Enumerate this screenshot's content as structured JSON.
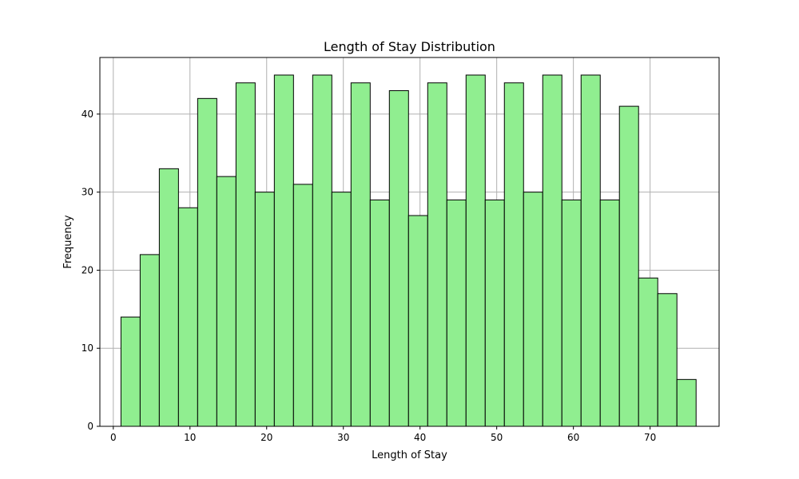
{
  "chart_data": {
    "type": "bar",
    "title": "Length of Stay Distribution",
    "xlabel": "Length of Stay",
    "ylabel": "Frequency",
    "xlim": [
      -1.75,
      79.0
    ],
    "ylim": [
      0,
      47.25
    ],
    "xticks": [
      0,
      10,
      20,
      30,
      40,
      50,
      60,
      70
    ],
    "yticks": [
      0,
      10,
      20,
      30,
      40
    ],
    "grid": true,
    "bin_start": 1,
    "bin_width": 2.5,
    "values": [
      14,
      22,
      33,
      28,
      42,
      32,
      44,
      30,
      45,
      31,
      45,
      30,
      44,
      29,
      43,
      27,
      44,
      29,
      45,
      29,
      44,
      30,
      45,
      29,
      45,
      29,
      41,
      19,
      17,
      6
    ],
    "colors": {
      "bar_fill": "#90ee90",
      "bar_edge": "#000000",
      "grid": "#b0b0b0",
      "axes": "#000000"
    }
  }
}
